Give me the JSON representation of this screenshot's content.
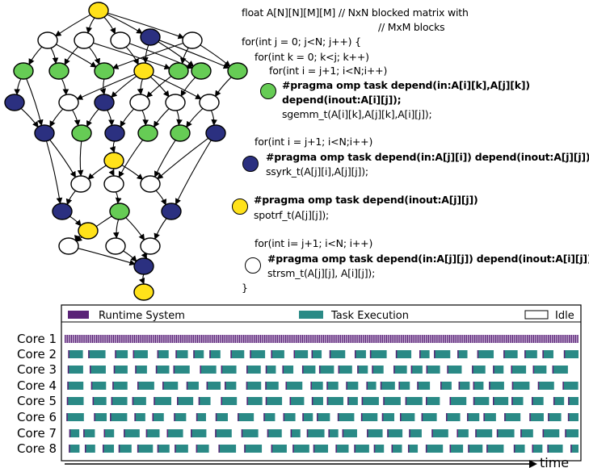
{
  "colors": {
    "green": "#66cc55",
    "navy": "#2b3080",
    "yellow": "#ffe21a",
    "white": "#ffffff",
    "runtime": "#5a2377",
    "task": "#2a8a86"
  },
  "code": {
    "l1": "float A[N][N][M][M] // NxN blocked matrix with",
    "l2": "// MxM blocks",
    "l3": "for(int j = 0; j<N; j++) {",
    "l4": "for(int k = 0; k<j; k++)",
    "l5": "for(int i = j+1; i<N;i++)",
    "l6": "#pragma omp task depend(in:A[i][k],A[j][k])",
    "l7": "depend(inout:A[i][j]);",
    "l8": "sgemm_t(A[i][k],A[j][k],A[i][j]);",
    "l9": "for(int i = j+1; i<N;i++)",
    "l10": "#pragma omp task depend(in:A[j][i]) depend(inout:A[j][j]);",
    "l11": "ssyrk_t(A[j][i],A[j][j]);",
    "l12": "#pragma omp task depend(inout:A[j][j])",
    "l13": "spotrf_t(A[j][j]);",
    "l14": "for(int i= j+1; i<N; i++)",
    "l15": "#pragma omp task depend(in:A[j][j]) depend(inout:A[i][j]);",
    "l16": "strsm_t(A[j][j], A[i][j]);",
    "l17": "}"
  },
  "legend": {
    "runtime": "Runtime System",
    "task": "Task Execution",
    "idle": "Idle"
  },
  "cores": [
    "Core 1",
    "Core 2",
    "Core 3",
    "Core 4",
    "Core 5",
    "Core 6",
    "Core 7",
    "Core 8"
  ],
  "time_label": "time"
}
